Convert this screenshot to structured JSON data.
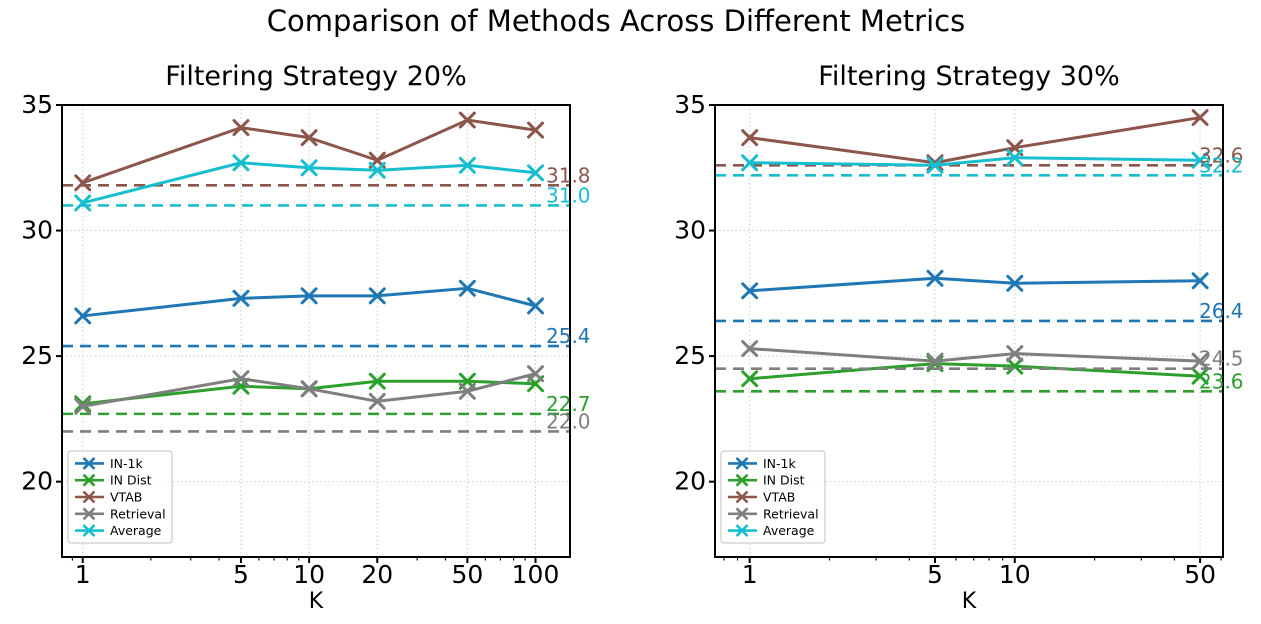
{
  "title": "Comparison of Methods Across Different Metrics",
  "chart_data": [
    {
      "type": "line",
      "title": "Filtering Strategy 20%",
      "xlabel": "K",
      "xscale": "log",
      "marker": "x",
      "grid": true,
      "legend_position": "lower left",
      "xlim": [
        0.81,
        142
      ],
      "ylim": [
        17,
        35
      ],
      "xticks": [
        1,
        5,
        10,
        20,
        50,
        100
      ],
      "yticks": [
        20,
        25,
        30,
        35
      ],
      "x": [
        1,
        5,
        10,
        20,
        50,
        100
      ],
      "series": [
        {
          "name": "IN-1k",
          "color": "#1f77b4",
          "values": [
            26.6,
            27.3,
            27.4,
            27.4,
            27.7,
            27.0
          ],
          "baseline": 25.4,
          "baseline_label": "25.4"
        },
        {
          "name": "IN Dist",
          "color": "#2ca02c",
          "values": [
            23.1,
            23.8,
            23.7,
            24.0,
            24.0,
            23.9
          ],
          "baseline": 22.7,
          "baseline_label": "22.7"
        },
        {
          "name": "VTAB",
          "color": "#8c564b",
          "values": [
            31.9,
            34.1,
            33.7,
            32.8,
            34.4,
            34.0
          ],
          "baseline": 31.8,
          "baseline_label": "31.8"
        },
        {
          "name": "Retrieval",
          "color": "#7f7f7f",
          "values": [
            23.0,
            24.1,
            23.7,
            23.2,
            23.6,
            24.3
          ],
          "baseline": 22.0,
          "baseline_label": "22.0"
        },
        {
          "name": "Average",
          "color": "#17becf",
          "values": [
            31.1,
            32.7,
            32.5,
            32.4,
            32.6,
            32.3
          ],
          "baseline": 31.0,
          "baseline_label": "31.0"
        }
      ]
    },
    {
      "type": "line",
      "title": "Filtering Strategy 30%",
      "xlabel": "K",
      "xscale": "log",
      "marker": "x",
      "grid": true,
      "legend_position": "lower left",
      "xlim": [
        0.74,
        61
      ],
      "ylim": [
        17,
        35
      ],
      "xticks": [
        1,
        5,
        10,
        50
      ],
      "yticks": [
        20,
        25,
        30,
        35
      ],
      "x": [
        1,
        5,
        10,
        50
      ],
      "series": [
        {
          "name": "IN-1k",
          "color": "#1f77b4",
          "values": [
            27.6,
            28.1,
            27.9,
            28.0
          ],
          "baseline": 26.4,
          "baseline_label": "26.4"
        },
        {
          "name": "IN Dist",
          "color": "#2ca02c",
          "values": [
            24.1,
            24.7,
            24.6,
            24.2
          ],
          "baseline": 23.6,
          "baseline_label": "23.6"
        },
        {
          "name": "VTAB",
          "color": "#8c564b",
          "values": [
            33.7,
            32.7,
            33.3,
            34.5
          ],
          "baseline": 32.6,
          "baseline_label": "32.6"
        },
        {
          "name": "Retrieval",
          "color": "#7f7f7f",
          "values": [
            25.3,
            24.8,
            25.1,
            24.8
          ],
          "baseline": 24.5,
          "baseline_label": "24.5"
        },
        {
          "name": "Average",
          "color": "#17becf",
          "values": [
            32.7,
            32.6,
            32.9,
            32.8
          ],
          "baseline": 32.2,
          "baseline_label": "32.2"
        }
      ]
    }
  ]
}
